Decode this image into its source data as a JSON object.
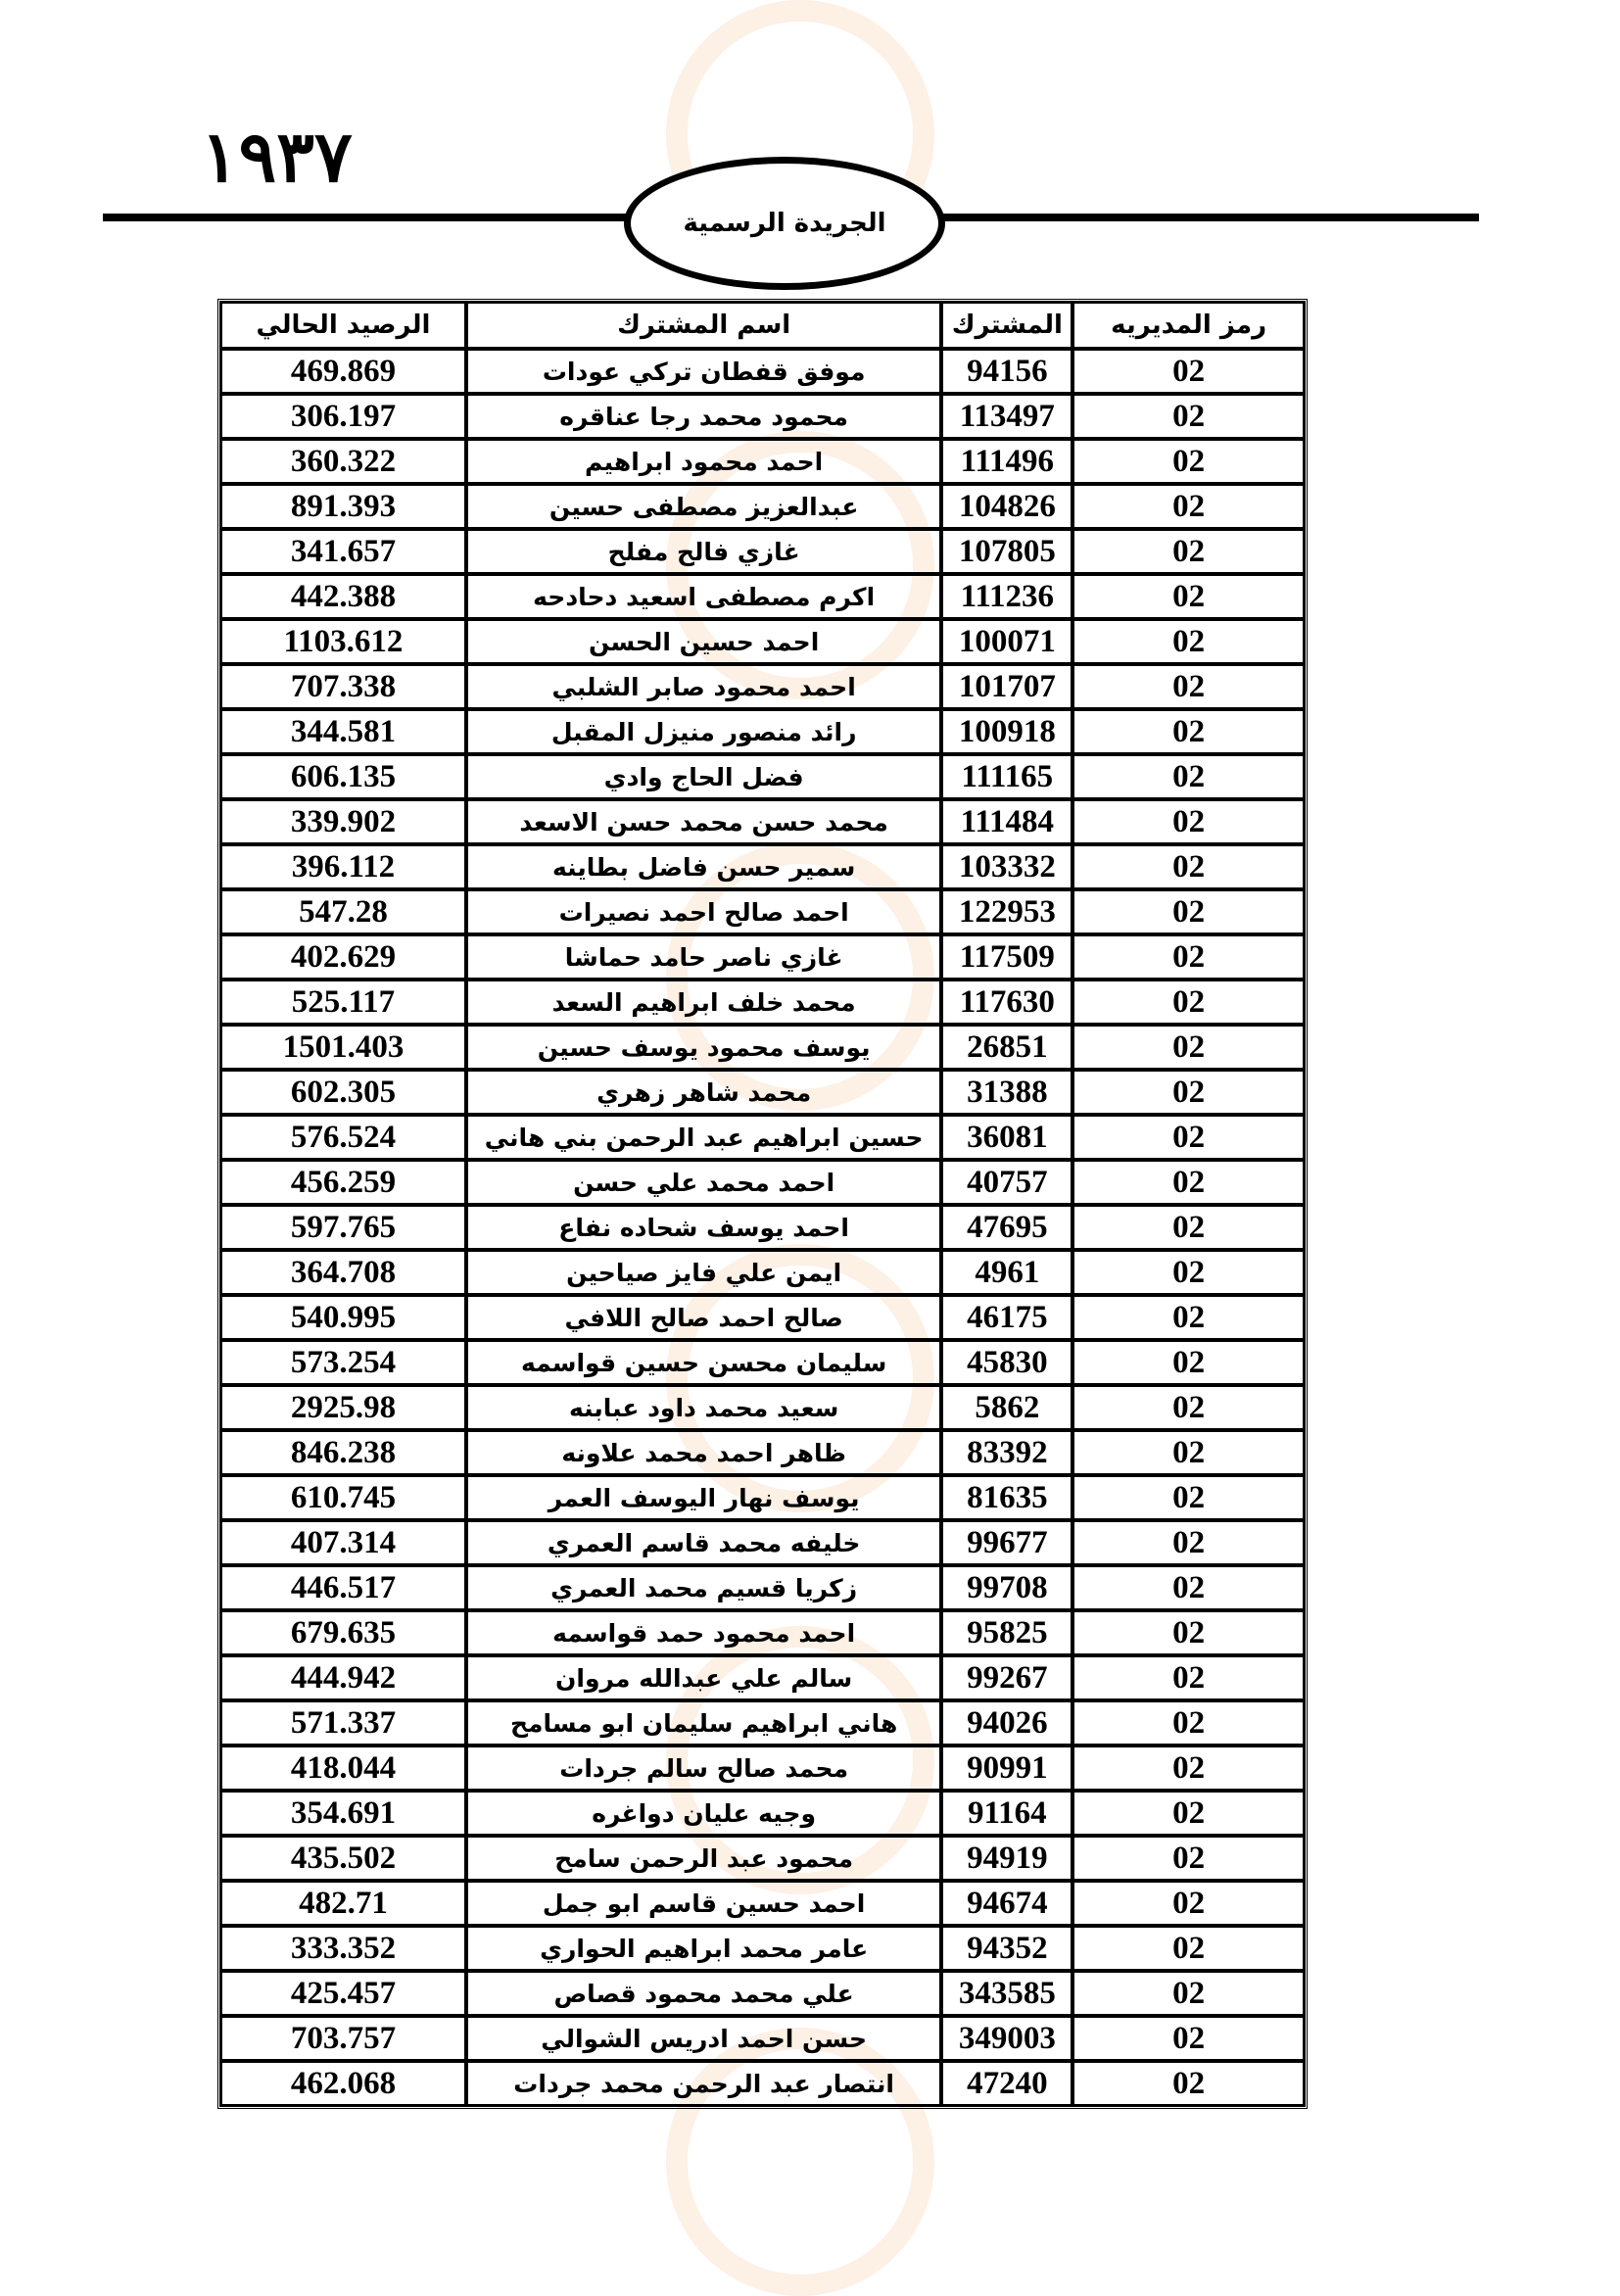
{
  "header": {
    "page_number": "١٩٣٧",
    "publication_title": "الجريدة الرسمية"
  },
  "table": {
    "columns": [
      "رمز المديريه",
      "المشترك",
      "اسم المشترك",
      "الرصيد الحالي"
    ],
    "rows": [
      {
        "code": "02",
        "subscriber": "94156",
        "name": "موفق قفطان تركي عودات",
        "balance": "469.869"
      },
      {
        "code": "02",
        "subscriber": "113497",
        "name": "محمود محمد رجا عناقره",
        "balance": "306.197"
      },
      {
        "code": "02",
        "subscriber": "111496",
        "name": "احمد محمود ابراهيم",
        "balance": "360.322"
      },
      {
        "code": "02",
        "subscriber": "104826",
        "name": "عبدالعزيز مصطفى حسين",
        "balance": "891.393"
      },
      {
        "code": "02",
        "subscriber": "107805",
        "name": "غازي فالح مفلح",
        "balance": "341.657"
      },
      {
        "code": "02",
        "subscriber": "111236",
        "name": "اكرم مصطفى اسعيد دحادحه",
        "balance": "442.388"
      },
      {
        "code": "02",
        "subscriber": "100071",
        "name": "احمد حسين الحسن",
        "balance": "1103.612"
      },
      {
        "code": "02",
        "subscriber": "101707",
        "name": "احمد محمود صابر الشلبي",
        "balance": "707.338"
      },
      {
        "code": "02",
        "subscriber": "100918",
        "name": "رائد منصور منيزل المقبل",
        "balance": "344.581"
      },
      {
        "code": "02",
        "subscriber": "111165",
        "name": "فضل الحاج وادي",
        "balance": "606.135"
      },
      {
        "code": "02",
        "subscriber": "111484",
        "name": "محمد حسن محمد حسن  الاسعد",
        "balance": "339.902"
      },
      {
        "code": "02",
        "subscriber": "103332",
        "name": "سمير حسن فاضل بطاينه",
        "balance": "396.112"
      },
      {
        "code": "02",
        "subscriber": "122953",
        "name": "احمد صالح احمد نصيرات",
        "balance": "547.28"
      },
      {
        "code": "02",
        "subscriber": "117509",
        "name": "غازي ناصر حامد حماشا",
        "balance": "402.629"
      },
      {
        "code": "02",
        "subscriber": "117630",
        "name": "محمد خلف ابراهيم السعد",
        "balance": "525.117"
      },
      {
        "code": "02",
        "subscriber": "26851",
        "name": "يوسف محمود يوسف حسين",
        "balance": "1501.403"
      },
      {
        "code": "02",
        "subscriber": "31388",
        "name": "محمد شاهر زهري",
        "balance": "602.305"
      },
      {
        "code": "02",
        "subscriber": "36081",
        "name": "حسين ابراهيم عبد الرحمن بني هاني",
        "balance": "576.524"
      },
      {
        "code": "02",
        "subscriber": "40757",
        "name": "احمد محمد علي حسن",
        "balance": "456.259"
      },
      {
        "code": "02",
        "subscriber": "47695",
        "name": "احمد يوسف شحاده نفاع",
        "balance": "597.765"
      },
      {
        "code": "02",
        "subscriber": "4961",
        "name": "ايمن علي فايز صياحين",
        "balance": "364.708"
      },
      {
        "code": "02",
        "subscriber": "46175",
        "name": "صالح احمد صالح اللافي",
        "balance": "540.995"
      },
      {
        "code": "02",
        "subscriber": "45830",
        "name": "سليمان محسن حسين قواسمه",
        "balance": "573.254"
      },
      {
        "code": "02",
        "subscriber": "5862",
        "name": "سعيد محمد داود عبابنه",
        "balance": "2925.98"
      },
      {
        "code": "02",
        "subscriber": "83392",
        "name": "ظاهر احمد محمد علاونه",
        "balance": "846.238"
      },
      {
        "code": "02",
        "subscriber": "81635",
        "name": "يوسف نهار اليوسف العمر",
        "balance": "610.745"
      },
      {
        "code": "02",
        "subscriber": "99677",
        "name": "خليفه محمد قاسم العمري",
        "balance": "407.314"
      },
      {
        "code": "02",
        "subscriber": "99708",
        "name": "زكريا قسيم محمد العمري",
        "balance": "446.517"
      },
      {
        "code": "02",
        "subscriber": "95825",
        "name": "احمد محمود  حمد قواسمه",
        "balance": "679.635"
      },
      {
        "code": "02",
        "subscriber": "99267",
        "name": "سالم علي عبدالله مروان",
        "balance": "444.942"
      },
      {
        "code": "02",
        "subscriber": "94026",
        "name": "هاني ابراهيم سليمان ابو مسامح",
        "balance": "571.337"
      },
      {
        "code": "02",
        "subscriber": "90991",
        "name": "محمد صالح سالم جردات",
        "balance": "418.044"
      },
      {
        "code": "02",
        "subscriber": "91164",
        "name": "وجيه عليان دواغره",
        "balance": "354.691"
      },
      {
        "code": "02",
        "subscriber": "94919",
        "name": "محمود عبد الرحمن سامح",
        "balance": "435.502"
      },
      {
        "code": "02",
        "subscriber": "94674",
        "name": "احمد حسين قاسم ابو جمل",
        "balance": "482.71"
      },
      {
        "code": "02",
        "subscriber": "94352",
        "name": "عامر محمد ابراهيم الحواري",
        "balance": "333.352"
      },
      {
        "code": "02",
        "subscriber": "343585",
        "name": "علي محمد محمود قصاص",
        "balance": "425.457"
      },
      {
        "code": "02",
        "subscriber": "349003",
        "name": "حسن احمد ادريس الشوالي",
        "balance": "703.757"
      },
      {
        "code": "02",
        "subscriber": "47240",
        "name": "انتصار عبد الرحمن محمد جردات",
        "balance": "462.068"
      }
    ]
  }
}
